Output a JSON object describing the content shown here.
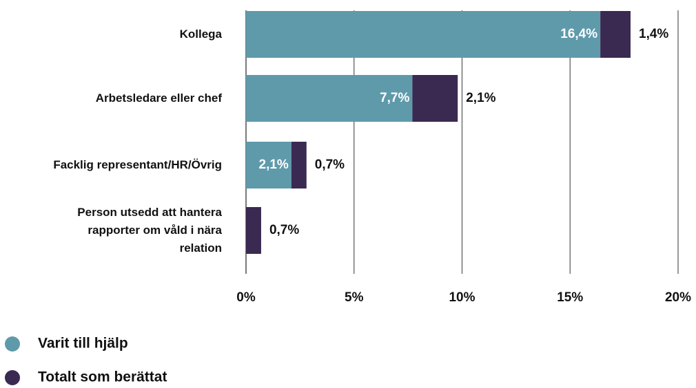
{
  "chart_data": {
    "type": "stacked_barh",
    "categories": [
      "Kollega",
      "Arbetsledare eller chef",
      "Facklig representant/HR/Övrig",
      "Person utsedd att hantera\nrapporter om våld i nära\nrelation"
    ],
    "series": [
      {
        "name": "Varit till hjälp",
        "color": "#5f9aab",
        "values": [
          16.4,
          7.7,
          2.1,
          null
        ],
        "value_labels": [
          "16,4%",
          "7,7%",
          "2,1%",
          null
        ]
      },
      {
        "name": "Totalt som berättat",
        "color": "#3a2a52",
        "values": [
          1.4,
          2.1,
          0.7,
          0.7
        ],
        "value_labels": [
          "1,4%",
          "2,1%",
          "0,7%",
          "0,7%"
        ]
      }
    ],
    "xlim": [
      0,
      20
    ],
    "xticks": [
      {
        "value": 0,
        "label": "0%"
      },
      {
        "value": 5,
        "label": "5%"
      },
      {
        "value": 10,
        "label": "10%"
      },
      {
        "value": 15,
        "label": "15%"
      },
      {
        "value": 20,
        "label": "20%"
      }
    ],
    "grid": true
  }
}
